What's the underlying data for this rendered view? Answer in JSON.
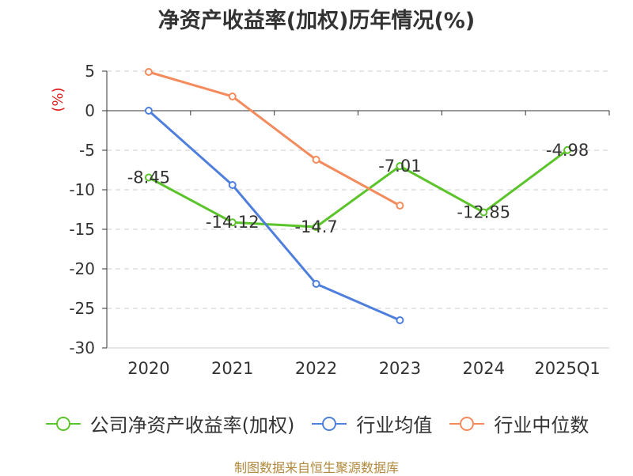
{
  "chart_data": {
    "type": "line",
    "title": "净资产收益率(加权)历年情况(%)",
    "ylabel": "(%)",
    "xlabel": "",
    "categories": [
      "2020",
      "2021",
      "2022",
      "2023",
      "2024",
      "2025Q1"
    ],
    "ylim": [
      -30,
      5
    ],
    "yticks": [
      5,
      0,
      -5,
      -10,
      -15,
      -20,
      -25,
      -30
    ],
    "grid": true,
    "legend_position": "bottom",
    "series": [
      {
        "name": "公司净资产收益率(加权)",
        "color": "#5cc42b",
        "values": [
          -8.45,
          -14.12,
          -14.7,
          -7.01,
          -12.85,
          -4.98
        ],
        "labels": [
          "-8.45",
          "-14.12",
          "-14.7",
          "-7.01",
          "-12.85",
          "-4.98"
        ]
      },
      {
        "name": "行业均值",
        "color": "#4f7fdc",
        "values": [
          0,
          -9.4,
          -21.9,
          -26.5,
          null,
          null
        ]
      },
      {
        "name": "行业中位数",
        "color": "#f48b5c",
        "values": [
          4.9,
          1.8,
          -6.2,
          -12.0,
          null,
          null
        ]
      }
    ]
  },
  "source": "制图数据来自恒生聚源数据库"
}
